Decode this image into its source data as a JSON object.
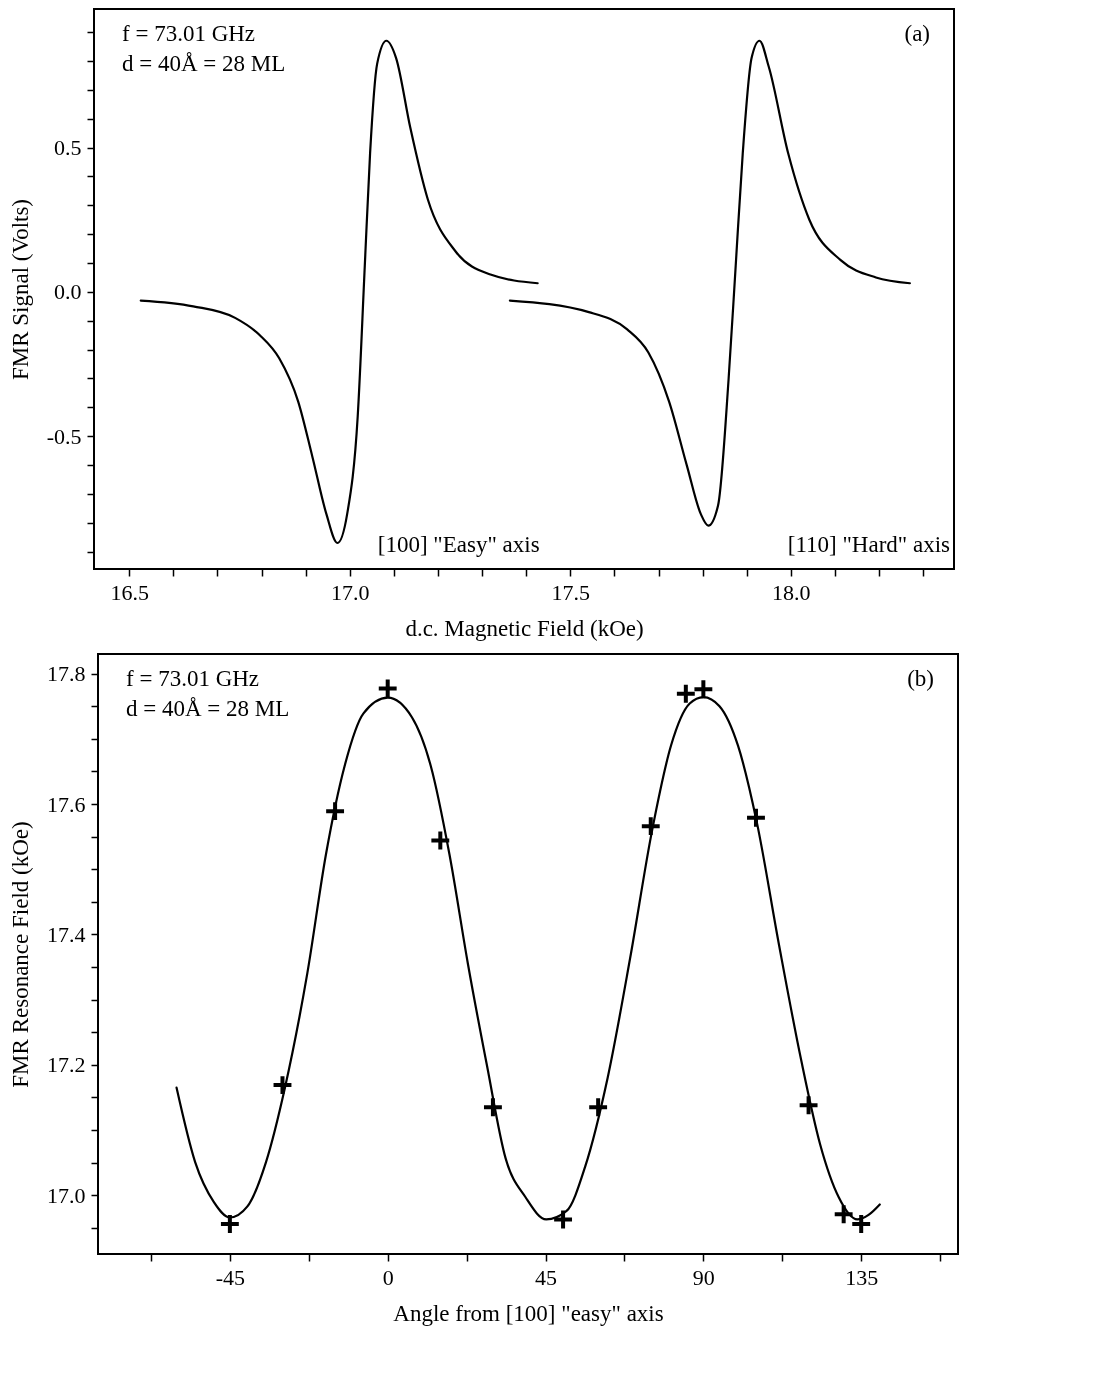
{
  "chart_data": [
    {
      "type": "line",
      "xlabel": "d.c. Magnetic Field (kOe)",
      "ylabel": "FMR Signal (Volts)",
      "xlim": [
        16.42,
        18.37
      ],
      "ylim": [
        -0.96,
        0.98
      ],
      "xticks": [
        {
          "value": 16.5,
          "label": "16.5"
        },
        {
          "value": 16.6,
          "label": null
        },
        {
          "value": 16.7,
          "label": null
        },
        {
          "value": 16.8,
          "label": null
        },
        {
          "value": 16.9,
          "label": null
        },
        {
          "value": 17,
          "label": "17.0"
        },
        {
          "value": 17.1,
          "label": null
        },
        {
          "value": 17.2,
          "label": null
        },
        {
          "value": 17.3,
          "label": null
        },
        {
          "value": 17.4,
          "label": null
        },
        {
          "value": 17.5,
          "label": "17.5"
        },
        {
          "value": 17.6,
          "label": null
        },
        {
          "value": 17.7,
          "label": null
        },
        {
          "value": 17.8,
          "label": null
        },
        {
          "value": 17.9,
          "label": null
        },
        {
          "value": 18,
          "label": "18.0"
        },
        {
          "value": 18.1,
          "label": null
        },
        {
          "value": 18.2,
          "label": null
        },
        {
          "value": 18.3,
          "label": null
        }
      ],
      "yticks": [
        {
          "value": -0.9,
          "label": null
        },
        {
          "value": -0.8,
          "label": null
        },
        {
          "value": -0.7,
          "label": null
        },
        {
          "value": -0.6,
          "label": null
        },
        -0.5,
        {
          "value": -0.4,
          "label": null
        },
        {
          "value": -0.3,
          "label": null
        },
        {
          "value": -0.2,
          "label": null
        },
        {
          "value": -0.1,
          "label": null
        },
        {
          "value": 0,
          "label": "0.0"
        },
        {
          "value": 0.1,
          "label": null
        },
        {
          "value": 0.2,
          "label": null
        },
        {
          "value": 0.3,
          "label": null
        },
        {
          "value": 0.4,
          "label": null
        },
        0.5,
        {
          "value": 0.6,
          "label": null
        },
        {
          "value": 0.7,
          "label": null
        },
        {
          "value": 0.8,
          "label": null
        },
        {
          "value": 0.9,
          "label": null
        }
      ],
      "grid": false,
      "line_style": "solid",
      "annotations": [
        "f = 73.01 GHz",
        "d = 40Å = 28 ML",
        "(a)",
        "[100] \"Easy\" axis",
        "[110] \"Hard\" axis"
      ],
      "series": [
        {
          "color": "#000000",
          "x": [
            16.526,
            16.645,
            16.74,
            16.796,
            16.84,
            16.883,
            16.915,
            16.947,
            16.972,
            16.994,
            17.018,
            17.034,
            17.046,
            17.062,
            17.083,
            17.105,
            17.137,
            17.177,
            17.24,
            17.319,
            17.426
          ],
          "values": [
            -0.03,
            -0.05,
            -0.09,
            -0.15,
            -0.23,
            -0.38,
            -0.57,
            -0.77,
            -0.87,
            -0.77,
            -0.43,
            0.09,
            0.48,
            0.79,
            0.87,
            0.81,
            0.57,
            0.32,
            0.14,
            0.06,
            0.03
          ]
        },
        {
          "color": "#000000",
          "x": [
            17.363,
            17.542,
            17.629,
            17.677,
            17.724,
            17.764,
            17.796,
            17.813,
            17.835,
            17.859,
            17.875,
            17.891,
            17.911,
            17.929,
            17.95,
            17.994,
            18.042,
            18.113,
            18.193,
            18.27
          ],
          "values": [
            -0.03,
            -0.07,
            -0.13,
            -0.21,
            -0.38,
            -0.6,
            -0.77,
            -0.81,
            -0.74,
            -0.3,
            0.09,
            0.48,
            0.81,
            0.87,
            0.78,
            0.48,
            0.25,
            0.11,
            0.05,
            0.03
          ]
        }
      ]
    },
    {
      "type": "scatter",
      "xlabel": "Angle from [100] \"easy\" axis",
      "ylabel": "FMR Resonance Field (kOe)",
      "xlim": [
        -82.6,
        162.6
      ],
      "ylim": [
        16.91,
        17.83
      ],
      "xticks": [
        {
          "value": -67.5,
          "label": null
        },
        -45,
        {
          "value": -22.5,
          "label": null
        },
        0,
        {
          "value": 22.5,
          "label": null
        },
        45,
        {
          "value": 67.5,
          "label": null
        },
        90,
        {
          "value": 112.5,
          "label": null
        },
        135,
        {
          "value": 157.5,
          "label": null
        }
      ],
      "yticks": [
        {
          "value": 16.95,
          "label": null
        },
        {
          "value": 17,
          "label": "17.0"
        },
        {
          "value": 17.05,
          "label": null
        },
        {
          "value": 17.1,
          "label": null
        },
        {
          "value": 17.15,
          "label": null
        },
        17.2,
        {
          "value": 17.25,
          "label": null
        },
        {
          "value": 17.3,
          "label": null
        },
        {
          "value": 17.35,
          "label": null
        },
        17.4,
        {
          "value": 17.45,
          "label": null
        },
        {
          "value": 17.5,
          "label": null
        },
        {
          "value": 17.55,
          "label": null
        },
        17.6,
        {
          "value": 17.65,
          "label": null
        },
        {
          "value": 17.7,
          "label": null
        },
        {
          "value": 17.75,
          "label": null
        },
        17.8
      ],
      "grid": false,
      "marker": "cross",
      "annotations": [
        "f = 73.01 GHz",
        "d = 40Å = 28 ML",
        "(b)"
      ],
      "series": [
        {
          "color": "#000000",
          "x": [
            -45,
            -30,
            -15,
            0,
            15,
            30,
            50,
            60,
            75,
            85,
            90,
            105,
            120,
            130,
            135
          ],
          "values": [
            16.956,
            17.169,
            17.589,
            17.777,
            17.544,
            17.135,
            16.963,
            17.135,
            17.566,
            17.769,
            17.776,
            17.579,
            17.138,
            16.971,
            16.956
          ]
        },
        {
          "type": "line",
          "color": "#000000",
          "line_style": "solid",
          "marker": "none",
          "x": [
            -60.2,
            -54.9,
            -49.6,
            -45,
            -40,
            -34.7,
            -29.3,
            -22.9,
            -17.6,
            -12.3,
            -6.9,
            0,
            6.9,
            12.3,
            17.6,
            22.9,
            28.3,
            33.6,
            39.3,
            45.2,
            51,
            56.3,
            62.7,
            69.1,
            75.4,
            80.8,
            86.1,
            90,
            94.6,
            99.9,
            105.2,
            111.6,
            117.9,
            123.3,
            128.6,
            133.9,
            137.1,
            140.3
          ],
          "values": [
            17.165,
            17.051,
            16.99,
            16.966,
            16.983,
            17.051,
            17.165,
            17.341,
            17.523,
            17.658,
            17.739,
            17.763,
            17.733,
            17.658,
            17.523,
            17.354,
            17.199,
            17.057,
            16.997,
            16.963,
            16.976,
            17.044,
            17.18,
            17.363,
            17.56,
            17.69,
            17.754,
            17.764,
            17.75,
            17.689,
            17.573,
            17.383,
            17.207,
            17.078,
            16.997,
            16.963,
            16.97,
            16.986
          ]
        }
      ]
    }
  ]
}
